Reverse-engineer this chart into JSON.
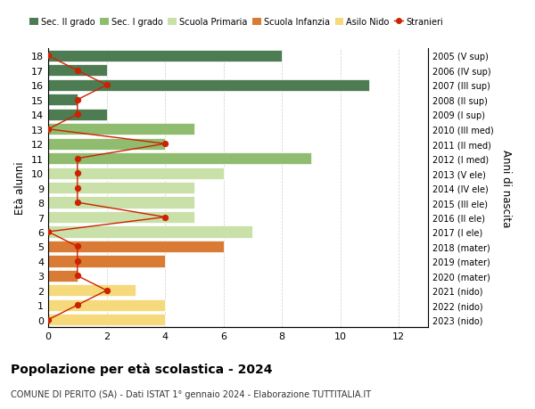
{
  "ages": [
    18,
    17,
    16,
    15,
    14,
    13,
    12,
    11,
    10,
    9,
    8,
    7,
    6,
    5,
    4,
    3,
    2,
    1,
    0
  ],
  "years_by_age": {
    "18": "2005 (V sup)",
    "17": "2006 (IV sup)",
    "16": "2007 (III sup)",
    "15": "2008 (II sup)",
    "14": "2009 (I sup)",
    "13": "2010 (III med)",
    "12": "2011 (II med)",
    "11": "2012 (I med)",
    "10": "2013 (V ele)",
    "9": "2014 (IV ele)",
    "8": "2015 (III ele)",
    "7": "2016 (II ele)",
    "6": "2017 (I ele)",
    "5": "2018 (mater)",
    "4": "2019 (mater)",
    "3": "2020 (mater)",
    "2": "2021 (nido)",
    "1": "2022 (nido)",
    "0": "2023 (nido)"
  },
  "bars": [
    8,
    2,
    11,
    1,
    2,
    5,
    4,
    9,
    6,
    5,
    5,
    5,
    7,
    6,
    4,
    1,
    3,
    4,
    4
  ],
  "bar_colors": [
    "#4d7c52",
    "#4d7c52",
    "#4d7c52",
    "#4d7c52",
    "#4d7c52",
    "#8fbc6e",
    "#8fbc6e",
    "#8fbc6e",
    "#c9e0a8",
    "#c9e0a8",
    "#c9e0a8",
    "#c9e0a8",
    "#c9e0a8",
    "#d97b35",
    "#d97b35",
    "#d97b35",
    "#f5d97a",
    "#f5d97a",
    "#f5d97a"
  ],
  "stranieri": [
    0,
    1,
    2,
    1,
    1,
    0,
    4,
    1,
    1,
    1,
    1,
    4,
    0,
    1,
    1,
    1,
    2,
    1,
    0
  ],
  "title": "Popolazione per età scolastica - 2024",
  "subtitle": "COMUNE DI PERITO (SA) - Dati ISTAT 1° gennaio 2024 - Elaborazione TUTTITALIA.IT",
  "ylabel_left": "Età alunni",
  "ylabel_right": "Anni di nascita",
  "legend_labels": [
    "Sec. II grado",
    "Sec. I grado",
    "Scuola Primaria",
    "Scuola Infanzia",
    "Asilo Nido",
    "Stranieri"
  ],
  "legend_colors": [
    "#4d7c52",
    "#8fbc6e",
    "#c9e0a8",
    "#d97b35",
    "#f5d97a",
    "#cc2200"
  ],
  "stranieri_color": "#cc2200",
  "background_color": "#ffffff",
  "grid_color": "#cccccc"
}
